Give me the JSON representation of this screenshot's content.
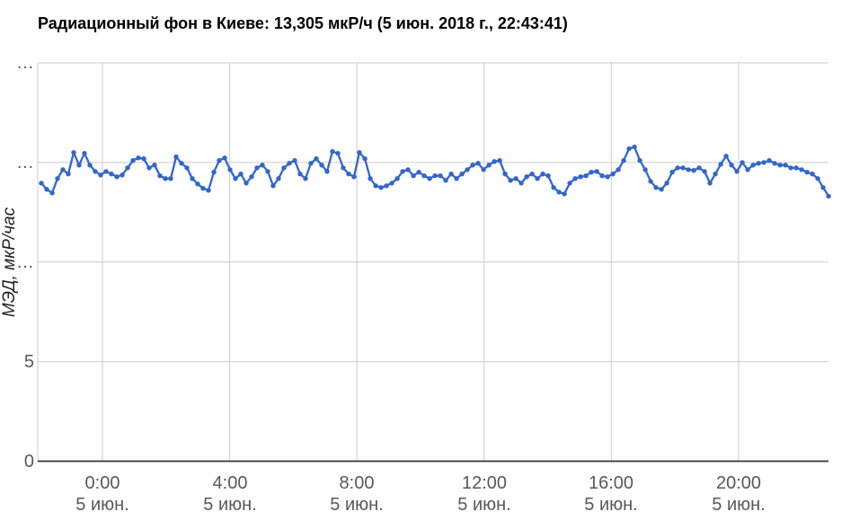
{
  "chart_data": {
    "type": "line",
    "title": "Радиационный фон в Киеве: 13,305 мкР/ч (5 июн. 2018 г., 22:43:41)",
    "title_station": "Радиационный фон в Киеве",
    "current_value_label": "13,305 мкР/ч",
    "current_time_label": "5 июн. 2018 г., 22:43:41",
    "ylabel": "МЭД, мкР/час",
    "xlabel": "",
    "ylim": [
      0,
      20
    ],
    "x_range_hours": [
      -2.0,
      22.9
    ],
    "grid": true,
    "legend": "none",
    "colors": {
      "series": "#3366cc",
      "grid": "#cccccc",
      "axis": "#333333",
      "tick_label": "#585858",
      "title": "#000000"
    },
    "y_ticks": [
      {
        "value": 0,
        "label": "0"
      },
      {
        "value": 5,
        "label": "5"
      },
      {
        "value": 10,
        "label": "…"
      },
      {
        "value": 15,
        "label": "…"
      },
      {
        "value": 20,
        "label": "…"
      }
    ],
    "x_ticks": [
      {
        "hour": 0,
        "time": "0:00",
        "date": "5 июн."
      },
      {
        "hour": 4,
        "time": "4:00",
        "date": "5 июн."
      },
      {
        "hour": 8,
        "time": "8:00",
        "date": "5 июн."
      },
      {
        "hour": 12,
        "time": "12:00",
        "date": "5 июн."
      },
      {
        "hour": 16,
        "time": "16:00",
        "date": "5 июн."
      },
      {
        "hour": 20,
        "time": "20:00",
        "date": "5 июн."
      }
    ],
    "series": [
      {
        "name": "МЭД, мкР/час",
        "color": "#3366cc",
        "start_hour": -1.92,
        "step_hours": 0.1695,
        "values": [
          13.96,
          13.65,
          13.47,
          14.19,
          14.64,
          14.42,
          15.5,
          14.87,
          15.46,
          14.87,
          14.55,
          14.37,
          14.55,
          14.42,
          14.28,
          14.37,
          14.73,
          15.1,
          15.23,
          15.19,
          14.73,
          14.87,
          14.33,
          14.19,
          14.19,
          15.28,
          14.96,
          14.73,
          14.19,
          13.92,
          13.7,
          13.6,
          14.51,
          15.1,
          15.23,
          14.64,
          14.19,
          14.42,
          13.96,
          14.28,
          14.73,
          14.87,
          14.55,
          13.83,
          14.19,
          14.73,
          14.96,
          15.1,
          14.42,
          14.19,
          14.96,
          15.19,
          14.87,
          14.55,
          15.55,
          15.46,
          14.73,
          14.42,
          14.28,
          15.5,
          15.19,
          14.19,
          13.83,
          13.74,
          13.83,
          13.96,
          14.19,
          14.55,
          14.64,
          14.33,
          14.51,
          14.33,
          14.19,
          14.33,
          14.33,
          14.1,
          14.42,
          14.19,
          14.42,
          14.64,
          14.87,
          14.96,
          14.64,
          14.87,
          15.05,
          15.1,
          14.42,
          14.1,
          14.19,
          13.96,
          14.28,
          14.42,
          14.19,
          14.42,
          14.33,
          13.74,
          13.51,
          13.42,
          13.96,
          14.19,
          14.28,
          14.33,
          14.51,
          14.55,
          14.33,
          14.28,
          14.42,
          14.64,
          15.1,
          15.69,
          15.78,
          15.1,
          14.64,
          14.05,
          13.74,
          13.65,
          13.96,
          14.51,
          14.73,
          14.73,
          14.64,
          14.6,
          14.73,
          14.55,
          13.96,
          14.42,
          14.91,
          15.32,
          14.87,
          14.55,
          15.0,
          14.64,
          14.87,
          14.96,
          15.0,
          15.1,
          14.96,
          14.87,
          14.87,
          14.73,
          14.73,
          14.64,
          14.51,
          14.42,
          14.19,
          13.74,
          13.31
        ]
      }
    ]
  }
}
